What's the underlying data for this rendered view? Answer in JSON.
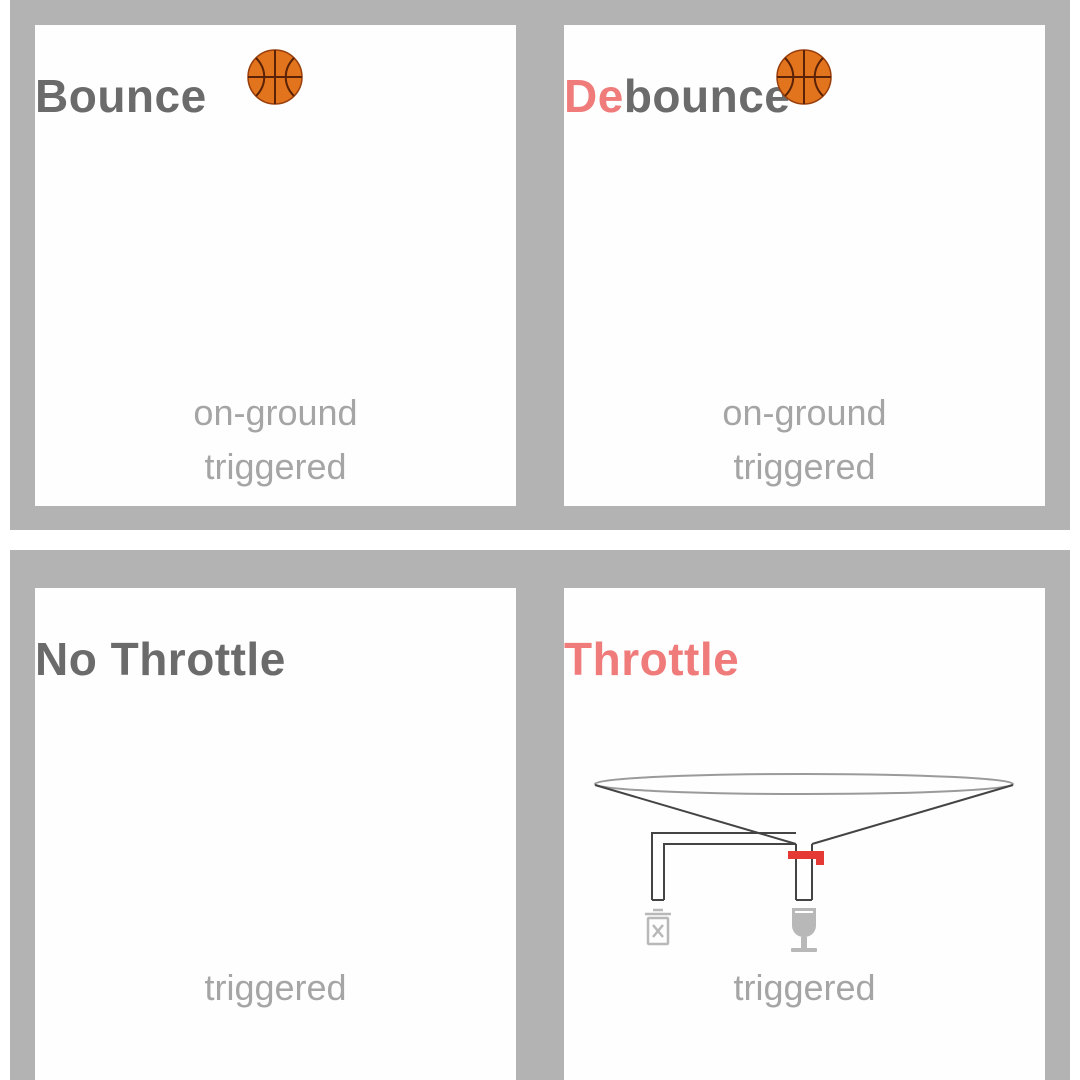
{
  "panels": {
    "bounce": {
      "title": "Bounce",
      "labels": [
        "on-ground",
        "triggered"
      ]
    },
    "debounce": {
      "title_accent": "De",
      "title_rest": "bounce",
      "labels": [
        "on-ground",
        "triggered"
      ]
    },
    "no_throttle": {
      "title": "No Throttle",
      "labels": [
        "triggered"
      ]
    },
    "throttle": {
      "title": "Throttle",
      "labels": [
        "triggered"
      ]
    }
  },
  "colors": {
    "frame": "#b3b3b3",
    "title": "#6b6b6b",
    "accent": "#f07b7b",
    "label": "#a5a5a5",
    "valve": "#e53935"
  },
  "icons": [
    "basketball-icon",
    "trash-icon",
    "wine-glass-icon"
  ]
}
